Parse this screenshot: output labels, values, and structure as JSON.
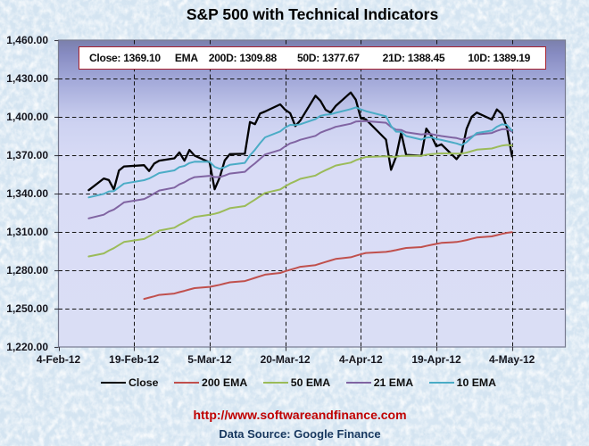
{
  "title": "S&P 500 with Technical Indicators",
  "info_box": {
    "items": [
      "Close: 1369.10",
      "EMA",
      "200D: 1309.88",
      "50D: 1377.67",
      "21D: 1388.45",
      "10D: 1389.19"
    ],
    "border_color": "#A8222E",
    "background": "#FFFFFF"
  },
  "footer": {
    "url": "http://www.softwareandfinance.com",
    "url_color": "#C00000",
    "source": "Data Source: Google Finance",
    "source_color": "#17375E"
  },
  "chart_data": {
    "type": "line",
    "title": "S&P 500 with Technical Indicators",
    "x_axis": {
      "unit": "days since 4-Feb-2012",
      "tick_labels": [
        "4-Feb-12",
        "19-Feb-12",
        "5-Mar-12",
        "20-Mar-12",
        "4-Apr-12",
        "19-Apr-12",
        "4-May-12"
      ],
      "tick_day_offsets": [
        0,
        15,
        30,
        45,
        60,
        75,
        90
      ],
      "domain_days": [
        0,
        100.7
      ]
    },
    "y_axis": {
      "min": 1220,
      "max": 1460,
      "step": 30,
      "tick_labels": [
        "1,220.00",
        "1,250.00",
        "1,280.00",
        "1,310.00",
        "1,340.00",
        "1,370.00",
        "1,400.00",
        "1,430.00",
        "1,460.00"
      ],
      "tick_values": [
        1220,
        1250,
        1280,
        1310,
        1340,
        1370,
        1400,
        1430,
        1460
      ]
    },
    "grid": {
      "dashed": true,
      "color": "#141414"
    },
    "legend_position": "bottom",
    "series": [
      {
        "name": "Close",
        "color": "#000000",
        "stroke_width": 2.3,
        "points": [
          [
            6,
            1342.64
          ],
          [
            9,
            1351.77
          ],
          [
            10,
            1350.5
          ],
          [
            11,
            1343.23
          ],
          [
            12,
            1358.04
          ],
          [
            13,
            1361.23
          ],
          [
            17,
            1362.21
          ],
          [
            18,
            1357.66
          ],
          [
            19,
            1363.46
          ],
          [
            20,
            1365.74
          ],
          [
            23,
            1367.59
          ],
          [
            24,
            1372.18
          ],
          [
            25,
            1365.68
          ],
          [
            26,
            1374.09
          ],
          [
            27,
            1369.63
          ],
          [
            30,
            1364.33
          ],
          [
            31,
            1343.36
          ],
          [
            32,
            1352.63
          ],
          [
            33,
            1365.91
          ],
          [
            34,
            1370.87
          ],
          [
            37,
            1371.09
          ],
          [
            38,
            1395.95
          ],
          [
            39,
            1394.28
          ],
          [
            40,
            1402.6
          ],
          [
            41,
            1404.17
          ],
          [
            44,
            1409.75
          ],
          [
            45,
            1405.52
          ],
          [
            46,
            1402.89
          ],
          [
            47,
            1392.78
          ],
          [
            48,
            1397.11
          ],
          [
            51,
            1416.51
          ],
          [
            52,
            1412.52
          ],
          [
            53,
            1405.54
          ],
          [
            54,
            1403.28
          ],
          [
            55,
            1408.47
          ],
          [
            58,
            1419.04
          ],
          [
            59,
            1413.38
          ],
          [
            60,
            1398.96
          ],
          [
            61,
            1398.08
          ],
          [
            65,
            1382.2
          ],
          [
            66,
            1358.59
          ],
          [
            67,
            1368.71
          ],
          [
            68,
            1387.57
          ],
          [
            69,
            1370.26
          ],
          [
            72,
            1369.57
          ],
          [
            73,
            1390.78
          ],
          [
            74,
            1385.14
          ],
          [
            75,
            1376.92
          ],
          [
            76,
            1378.53
          ],
          [
            79,
            1366.94
          ],
          [
            80,
            1371.97
          ],
          [
            81,
            1390.69
          ],
          [
            82,
            1399.98
          ],
          [
            83,
            1403.36
          ],
          [
            86,
            1397.91
          ],
          [
            87,
            1405.82
          ],
          [
            88,
            1402.31
          ],
          [
            89,
            1391.57
          ],
          [
            90,
            1369.1
          ]
        ]
      },
      {
        "name": "200 EMA",
        "color": "#C0504D",
        "stroke_width": 2.0,
        "points": [
          [
            17,
            1257.62
          ],
          [
            18,
            1258.62
          ],
          [
            19,
            1259.66
          ],
          [
            20,
            1260.71
          ],
          [
            23,
            1261.78
          ],
          [
            24,
            1262.88
          ],
          [
            25,
            1263.9
          ],
          [
            26,
            1265.0
          ],
          [
            27,
            1266.04
          ],
          [
            30,
            1267.02
          ],
          [
            31,
            1267.77
          ],
          [
            32,
            1268.62
          ],
          [
            33,
            1269.59
          ],
          [
            34,
            1270.59
          ],
          [
            37,
            1271.59
          ],
          [
            38,
            1272.83
          ],
          [
            39,
            1274.04
          ],
          [
            40,
            1275.32
          ],
          [
            41,
            1276.6
          ],
          [
            44,
            1277.93
          ],
          [
            45,
            1279.2
          ],
          [
            46,
            1280.43
          ],
          [
            47,
            1281.55
          ],
          [
            48,
            1282.7
          ],
          [
            51,
            1284.03
          ],
          [
            52,
            1285.31
          ],
          [
            53,
            1286.5
          ],
          [
            54,
            1287.66
          ],
          [
            55,
            1288.87
          ],
          [
            58,
            1290.16
          ],
          [
            59,
            1291.39
          ],
          [
            60,
            1292.46
          ],
          [
            61,
            1293.51
          ],
          [
            65,
            1294.39
          ],
          [
            66,
            1295.03
          ],
          [
            67,
            1295.76
          ],
          [
            68,
            1296.68
          ],
          [
            69,
            1297.41
          ],
          [
            72,
            1298.13
          ],
          [
            73,
            1299.05
          ],
          [
            74,
            1299.9
          ],
          [
            75,
            1300.67
          ],
          [
            76,
            1301.45
          ],
          [
            79,
            1302.1
          ],
          [
            80,
            1302.79
          ],
          [
            81,
            1303.67
          ],
          [
            82,
            1304.63
          ],
          [
            83,
            1305.61
          ],
          [
            86,
            1306.53
          ],
          [
            87,
            1307.51
          ],
          [
            88,
            1308.46
          ],
          [
            89,
            1309.28
          ],
          [
            90,
            1309.88
          ]
        ]
      },
      {
        "name": "50 EMA",
        "color": "#9BBB59",
        "stroke_width": 2.0,
        "points": [
          [
            6,
            1290.82
          ],
          [
            9,
            1293.21
          ],
          [
            10,
            1295.45
          ],
          [
            11,
            1297.33
          ],
          [
            12,
            1299.71
          ],
          [
            13,
            1302.12
          ],
          [
            17,
            1304.48
          ],
          [
            18,
            1306.56
          ],
          [
            19,
            1308.79
          ],
          [
            20,
            1311.03
          ],
          [
            23,
            1313.25
          ],
          [
            24,
            1315.56
          ],
          [
            25,
            1317.52
          ],
          [
            26,
            1319.74
          ],
          [
            27,
            1321.7
          ],
          [
            30,
            1323.37
          ],
          [
            31,
            1324.15
          ],
          [
            32,
            1325.27
          ],
          [
            33,
            1326.86
          ],
          [
            34,
            1328.59
          ],
          [
            37,
            1330.26
          ],
          [
            38,
            1332.83
          ],
          [
            39,
            1335.24
          ],
          [
            40,
            1337.88
          ],
          [
            41,
            1340.48
          ],
          [
            44,
            1343.2
          ],
          [
            45,
            1345.64
          ],
          [
            46,
            1347.89
          ],
          [
            47,
            1349.65
          ],
          [
            48,
            1351.51
          ],
          [
            51,
            1354.06
          ],
          [
            52,
            1356.35
          ],
          [
            53,
            1358.28
          ],
          [
            54,
            1360.05
          ],
          [
            55,
            1361.94
          ],
          [
            58,
            1364.18
          ],
          [
            59,
            1366.11
          ],
          [
            60,
            1367.4
          ],
          [
            61,
            1368.6
          ],
          [
            65,
            1369.14
          ],
          [
            66,
            1368.72
          ],
          [
            67,
            1368.72
          ],
          [
            68,
            1369.46
          ],
          [
            69,
            1369.49
          ],
          [
            72,
            1369.5
          ],
          [
            73,
            1370.33
          ],
          [
            74,
            1370.91
          ],
          [
            75,
            1371.15
          ],
          [
            76,
            1371.44
          ],
          [
            79,
            1371.26
          ],
          [
            80,
            1371.29
          ],
          [
            81,
            1372.05
          ],
          [
            82,
            1373.14
          ],
          [
            83,
            1374.33
          ],
          [
            86,
            1375.25
          ],
          [
            87,
            1376.45
          ],
          [
            88,
            1377.47
          ],
          [
            89,
            1378.02
          ],
          [
            90,
            1377.67
          ]
        ]
      },
      {
        "name": "21 EMA",
        "color": "#8064A2",
        "stroke_width": 2.0,
        "points": [
          [
            6,
            1320.62
          ],
          [
            9,
            1323.45
          ],
          [
            10,
            1325.91
          ],
          [
            11,
            1327.49
          ],
          [
            12,
            1330.26
          ],
          [
            13,
            1333.08
          ],
          [
            17,
            1335.73
          ],
          [
            18,
            1337.72
          ],
          [
            19,
            1340.06
          ],
          [
            20,
            1342.4
          ],
          [
            23,
            1344.69
          ],
          [
            24,
            1347.19
          ],
          [
            25,
            1348.87
          ],
          [
            26,
            1351.16
          ],
          [
            27,
            1352.84
          ],
          [
            30,
            1353.88
          ],
          [
            31,
            1352.93
          ],
          [
            32,
            1352.9
          ],
          [
            33,
            1354.08
          ],
          [
            34,
            1355.61
          ],
          [
            37,
            1357.02
          ],
          [
            38,
            1360.56
          ],
          [
            39,
            1363.62
          ],
          [
            40,
            1367.17
          ],
          [
            41,
            1370.53
          ],
          [
            44,
            1374.09
          ],
          [
            45,
            1376.95
          ],
          [
            46,
            1379.31
          ],
          [
            47,
            1380.53
          ],
          [
            48,
            1382.04
          ],
          [
            51,
            1385.17
          ],
          [
            52,
            1387.66
          ],
          [
            53,
            1389.29
          ],
          [
            54,
            1390.56
          ],
          [
            55,
            1392.19
          ],
          [
            58,
            1394.63
          ],
          [
            59,
            1396.33
          ],
          [
            60,
            1396.57
          ],
          [
            61,
            1396.71
          ],
          [
            65,
            1395.39
          ],
          [
            66,
            1392.04
          ],
          [
            67,
            1389.92
          ],
          [
            68,
            1389.71
          ],
          [
            69,
            1387.94
          ],
          [
            72,
            1386.27
          ],
          [
            73,
            1386.68
          ],
          [
            74,
            1386.54
          ],
          [
            75,
            1385.67
          ],
          [
            76,
            1385.02
          ],
          [
            79,
            1383.37
          ],
          [
            80,
            1382.34
          ],
          [
            81,
            1383.1
          ],
          [
            82,
            1384.63
          ],
          [
            83,
            1386.33
          ],
          [
            86,
            1387.39
          ],
          [
            87,
            1389.06
          ],
          [
            88,
            1390.27
          ],
          [
            89,
            1390.38
          ],
          [
            90,
            1388.45
          ]
        ]
      },
      {
        "name": "10 EMA",
        "color": "#4BACC6",
        "stroke_width": 2.0,
        "points": [
          [
            6,
            1337.0
          ],
          [
            9,
            1339.69
          ],
          [
            10,
            1341.65
          ],
          [
            11,
            1341.94
          ],
          [
            12,
            1344.87
          ],
          [
            13,
            1347.84
          ],
          [
            17,
            1350.45
          ],
          [
            18,
            1351.76
          ],
          [
            19,
            1353.89
          ],
          [
            20,
            1356.05
          ],
          [
            23,
            1358.14
          ],
          [
            24,
            1360.7
          ],
          [
            25,
            1361.6
          ],
          [
            26,
            1363.87
          ],
          [
            27,
            1364.92
          ],
          [
            30,
            1364.81
          ],
          [
            31,
            1360.91
          ],
          [
            32,
            1359.41
          ],
          [
            33,
            1360.59
          ],
          [
            34,
            1362.46
          ],
          [
            37,
            1364.03
          ],
          [
            38,
            1369.83
          ],
          [
            39,
            1374.28
          ],
          [
            40,
            1379.43
          ],
          [
            41,
            1383.93
          ],
          [
            44,
            1388.62
          ],
          [
            45,
            1391.69
          ],
          [
            46,
            1393.73
          ],
          [
            47,
            1393.56
          ],
          [
            48,
            1394.2
          ],
          [
            51,
            1398.26
          ],
          [
            52,
            1400.85
          ],
          [
            53,
            1401.7
          ],
          [
            54,
            1401.99
          ],
          [
            55,
            1403.17
          ],
          [
            58,
            1406.05
          ],
          [
            59,
            1407.39
          ],
          [
            60,
            1405.85
          ],
          [
            61,
            1404.44
          ],
          [
            65,
            1400.4
          ],
          [
            66,
            1392.8
          ],
          [
            67,
            1388.42
          ],
          [
            68,
            1388.26
          ],
          [
            69,
            1384.99
          ],
          [
            72,
            1382.19
          ],
          [
            73,
            1383.75
          ],
          [
            74,
            1384.0
          ],
          [
            75,
            1382.71
          ],
          [
            76,
            1381.95
          ],
          [
            79,
            1379.22
          ],
          [
            80,
            1377.9
          ],
          [
            81,
            1380.23
          ],
          [
            82,
            1383.82
          ],
          [
            83,
            1387.37
          ],
          [
            86,
            1389.29
          ],
          [
            87,
            1392.29
          ],
          [
            88,
            1394.12
          ],
          [
            89,
            1393.65
          ],
          [
            90,
            1389.19
          ]
        ]
      }
    ]
  }
}
